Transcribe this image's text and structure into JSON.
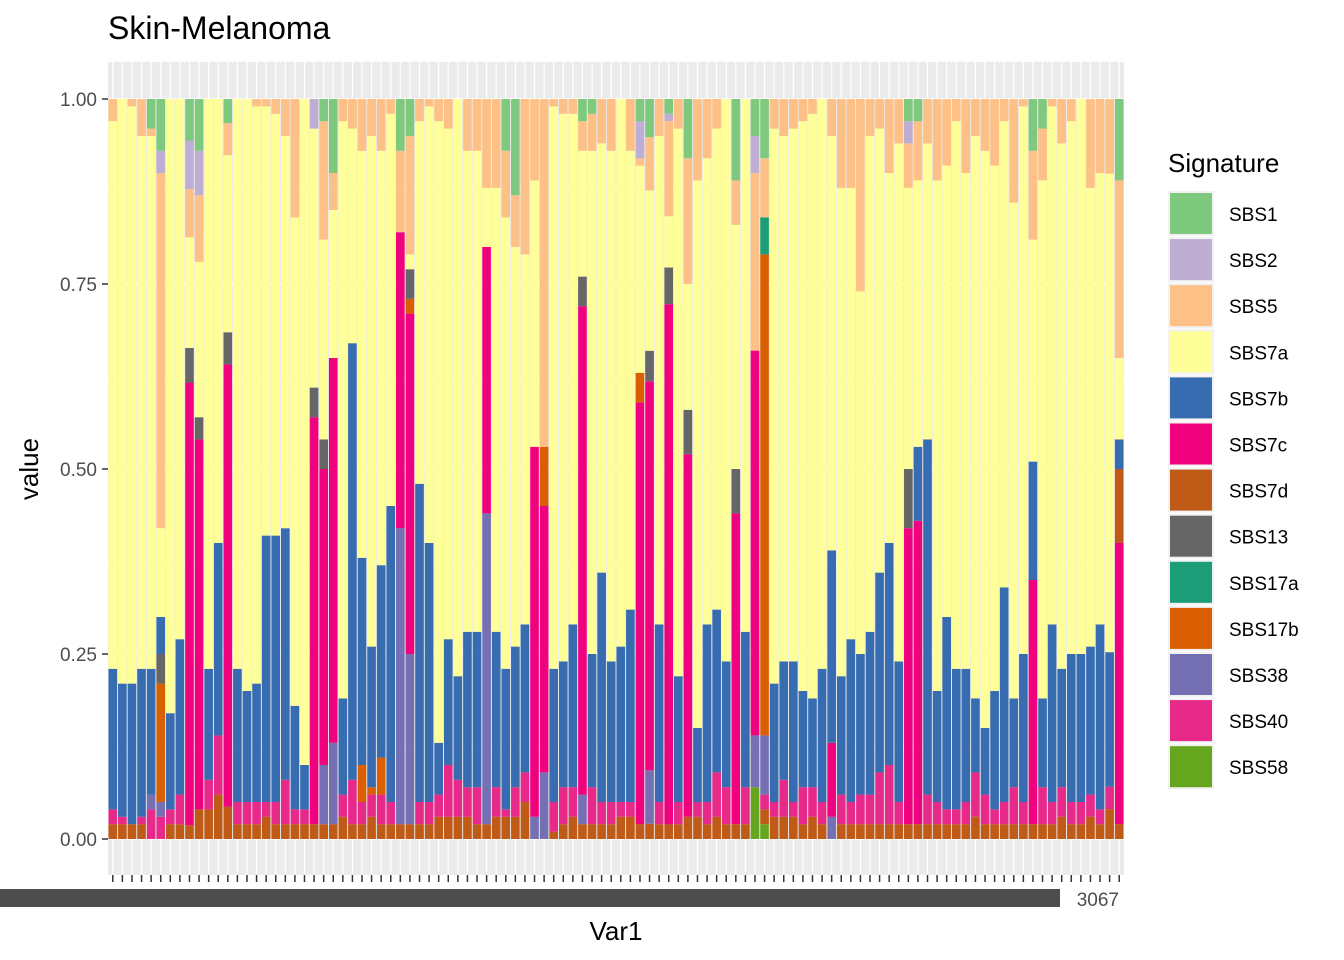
{
  "chart_data": {
    "type": "bar",
    "stacked": true,
    "title": "Skin-Melanoma",
    "xlabel": "Var1",
    "ylabel": "value",
    "ylim": [
      0,
      1
    ],
    "yticks": [
      "0.00",
      "0.25",
      "0.50",
      "0.75",
      "1.00"
    ],
    "grid": true,
    "legend": {
      "title": "Signature",
      "position": "right"
    },
    "signatures": [
      {
        "name": "SBS1",
        "color": "#7fc97f"
      },
      {
        "name": "SBS2",
        "color": "#beaed4"
      },
      {
        "name": "SBS5",
        "color": "#fdc086"
      },
      {
        "name": "SBS7a",
        "color": "#ffff99"
      },
      {
        "name": "SBS7b",
        "color": "#386cb0"
      },
      {
        "name": "SBS7c",
        "color": "#f0027f"
      },
      {
        "name": "SBS7d",
        "color": "#bf5b17"
      },
      {
        "name": "SBS13",
        "color": "#666666"
      },
      {
        "name": "SBS17a",
        "color": "#1b9e77"
      },
      {
        "name": "SBS17b",
        "color": "#d95f02"
      },
      {
        "name": "SBS38",
        "color": "#7570b3"
      },
      {
        "name": "SBS40",
        "color": "#e7298a"
      },
      {
        "name": "SBS58",
        "color": "#66a61e"
      }
    ],
    "bars": [
      {
        "SBS7d": 0.02,
        "SBS40": 0.02,
        "SBS7b": 0.19,
        "SBS7a": 0.74,
        "SBS5": 0.03
      },
      {
        "SBS7d": 0.02,
        "SBS40": 0.01,
        "SBS7b": 0.18,
        "SBS7a": 0.79
      },
      {
        "SBS7d": 0.02,
        "SBS7b": 0.19,
        "SBS7a": 0.78,
        "SBS5": 0.01
      },
      {
        "SBS7d": 0.02,
        "SBS40": 0.01,
        "SBS7b": 0.2,
        "SBS7a": 0.72,
        "SBS5": 0.05
      },
      {
        "SBS38": 0.02,
        "SBS40": 0.04,
        "SBS7b": 0.17,
        "SBS7a": 0.72,
        "SBS5": 0.01,
        "SBS1": 0.04
      },
      {
        "SBS38": 0.02,
        "SBS13": 0.04,
        "SBS17b": 0.16,
        "SBS40": 0.03,
        "SBS7b": 0.05,
        "SBS7a": 0.12,
        "SBS5": 0.48,
        "SBS2": 0.03,
        "SBS1": 0.07
      },
      {
        "SBS7d": 0.02,
        "SBS40": 0.02,
        "SBS7b": 0.13,
        "SBS7a": 0.83
      },
      {
        "SBS7d": 0.02,
        "SBS40": 0.04,
        "SBS7b": 0.21,
        "SBS7a": 0.73
      },
      {
        "SBS7d": 0.02,
        "SBS7c": 0.64,
        "SBS13": 0.05,
        "SBS7a": 0.16,
        "SBS5": 0.07,
        "SBS2": 0.07,
        "SBS1": 0.06
      },
      {
        "SBS7d": 0.04,
        "SBS7c": 0.5,
        "SBS13": 0.03,
        "SBS7a": 0.21,
        "SBS5": 0.09,
        "SBS2": 0.06,
        "SBS1": 0.07
      },
      {
        "SBS7d": 0.04,
        "SBS40": 0.04,
        "SBS7b": 0.15,
        "SBS7a": 0.77
      },
      {
        "SBS7d": 0.06,
        "SBS40": 0.08,
        "SBS7b": 0.26,
        "SBS7a": 0.6
      },
      {
        "SBS7d": 0.04,
        "SBS7c": 0.55,
        "SBS13": 0.04,
        "SBS7a": 0.22,
        "SBS5": 0.04,
        "SBS1": 0.03
      },
      {
        "SBS7d": 0.02,
        "SBS40": 0.03,
        "SBS7b": 0.18,
        "SBS7a": 0.77
      },
      {
        "SBS7d": 0.02,
        "SBS40": 0.03,
        "SBS7b": 0.15,
        "SBS7a": 0.8
      },
      {
        "SBS7d": 0.02,
        "SBS40": 0.03,
        "SBS7b": 0.16,
        "SBS7a": 0.78,
        "SBS5": 0.01
      },
      {
        "SBS7d": 0.03,
        "SBS40": 0.02,
        "SBS7b": 0.36,
        "SBS7a": 0.58,
        "SBS5": 0.01
      },
      {
        "SBS7d": 0.02,
        "SBS40": 0.03,
        "SBS7b": 0.36,
        "SBS7a": 0.57,
        "SBS5": 0.02
      },
      {
        "SBS7d": 0.02,
        "SBS40": 0.06,
        "SBS7b": 0.34,
        "SBS7a": 0.53,
        "SBS5": 0.05
      },
      {
        "SBS7d": 0.02,
        "SBS40": 0.02,
        "SBS7b": 0.14,
        "SBS7a": 0.66,
        "SBS5": 0.16
      },
      {
        "SBS7d": 0.02,
        "SBS40": 0.02,
        "SBS7b": 0.06,
        "SBS7a": 0.9
      },
      {
        "SBS7d": 0.02,
        "SBS7c": 0.55,
        "SBS13": 0.04,
        "SBS7a": 0.35,
        "SBS5": 0.0,
        "SBS2": 0.04
      },
      {
        "SBS7d": 0.02,
        "SBS7c": 0.4,
        "SBS38": 0.08,
        "SBS13": 0.04,
        "SBS7a": 0.27,
        "SBS5": 0.16,
        "SBS1": 0.03
      },
      {
        "SBS7d": 0.02,
        "SBS7c": 0.52,
        "SBS38": 0.11,
        "SBS7a": 0.2,
        "SBS5": 0.05,
        "SBS1": 0.1
      },
      {
        "SBS7d": 0.03,
        "SBS40": 0.03,
        "SBS7b": 0.13,
        "SBS7a": 0.78,
        "SBS5": 0.03
      },
      {
        "SBS7d": 0.02,
        "SBS40": 0.06,
        "SBS7b": 0.59,
        "SBS7a": 0.29,
        "SBS5": 0.04
      },
      {
        "SBS7d": 0.02,
        "SBS40": 0.03,
        "SBS7b": 0.28,
        "SBS17b": 0.05,
        "SBS7a": 0.55,
        "SBS5": 0.07
      },
      {
        "SBS7d": 0.03,
        "SBS40": 0.03,
        "SBS7b": 0.19,
        "SBS17b": 0.01,
        "SBS7a": 0.69,
        "SBS5": 0.05
      },
      {
        "SBS7d": 0.02,
        "SBS40": 0.04,
        "SBS7b": 0.26,
        "SBS17b": 0.05,
        "SBS7a": 0.56,
        "SBS5": 0.07
      },
      {
        "SBS7d": 0.02,
        "SBS40": 0.03,
        "SBS7b": 0.4,
        "SBS7a": 0.53,
        "SBS5": 0.02
      },
      {
        "SBS7d": 0.02,
        "SBS7c": 0.4,
        "SBS38": 0.4,
        "SBS7a": 0.0,
        "SBS5": 0.11,
        "SBS1": 0.07
      },
      {
        "SBS7d": 0.02,
        "SBS7c": 0.46,
        "SBS38": 0.23,
        "SBS13": 0.04,
        "SBS17b": 0.02,
        "SBS7a": 0.02,
        "SBS5": 0.16,
        "SBS1": 0.05
      },
      {
        "SBS7d": 0.02,
        "SBS40": 0.03,
        "SBS7b": 0.43,
        "SBS7a": 0.49,
        "SBS5": 0.03
      },
      {
        "SBS7d": 0.02,
        "SBS40": 0.03,
        "SBS7b": 0.35,
        "SBS7a": 0.59,
        "SBS5": 0.01
      },
      {
        "SBS7d": 0.03,
        "SBS40": 0.03,
        "SBS7b": 0.07,
        "SBS7a": 0.84,
        "SBS5": 0.03
      },
      {
        "SBS7d": 0.03,
        "SBS40": 0.07,
        "SBS7b": 0.17,
        "SBS7a": 0.69,
        "SBS5": 0.04
      },
      {
        "SBS7d": 0.03,
        "SBS40": 0.05,
        "SBS7b": 0.14,
        "SBS7a": 0.78
      },
      {
        "SBS7d": 0.03,
        "SBS40": 0.04,
        "SBS7b": 0.21,
        "SBS7a": 0.65,
        "SBS5": 0.07
      },
      {
        "SBS7d": 0.02,
        "SBS40": 0.05,
        "SBS7b": 0.21,
        "SBS7a": 0.65,
        "SBS5": 0.07
      },
      {
        "SBS7d": 0.02,
        "SBS7c": 0.36,
        "SBS38": 0.42,
        "SBS7a": 0.08,
        "SBS5": 0.12
      },
      {
        "SBS7d": 0.03,
        "SBS40": 0.04,
        "SBS7b": 0.21,
        "SBS7a": 0.6,
        "SBS5": 0.12
      },
      {
        "SBS7d": 0.03,
        "SBS40": 0.01,
        "SBS7b": 0.19,
        "SBS7a": 0.61,
        "SBS5": 0.09,
        "SBS1": 0.07
      },
      {
        "SBS7d": 0.03,
        "SBS40": 0.04,
        "SBS7b": 0.19,
        "SBS7a": 0.54,
        "SBS5": 0.07,
        "SBS1": 0.13
      },
      {
        "SBS7d": 0.05,
        "SBS40": 0.04,
        "SBS7b": 0.2,
        "SBS7a": 0.5,
        "SBS5": 0.21
      },
      {
        "SBS7c": 0.5,
        "SBS38": 0.03,
        "SBS7a": 0.36,
        "SBS5": 0.11
      },
      {
        "SBS7c": 0.36,
        "SBS38": 0.09,
        "SBS17b": 0.08,
        "SBS7a": 0.0,
        "SBS5": 0.47
      },
      {
        "SBS7d": 0.01,
        "SBS40": 0.04,
        "SBS7b": 0.18,
        "SBS7a": 0.76,
        "SBS5": 0.01
      },
      {
        "SBS7d": 0.02,
        "SBS40": 0.05,
        "SBS7b": 0.17,
        "SBS7a": 0.74,
        "SBS5": 0.02
      },
      {
        "SBS7d": 0.03,
        "SBS40": 0.04,
        "SBS7b": 0.22,
        "SBS7a": 0.69,
        "SBS5": 0.02
      },
      {
        "SBS7d": 0.02,
        "SBS7c": 0.66,
        "SBS13": 0.04,
        "SBS38": 0.04,
        "SBS7a": 0.17,
        "SBS5": 0.04,
        "SBS1": 0.03
      },
      {
        "SBS7d": 0.02,
        "SBS40": 0.05,
        "SBS7b": 0.18,
        "SBS7a": 0.68,
        "SBS5": 0.05,
        "SBS1": 0.02
      },
      {
        "SBS7d": 0.02,
        "SBS40": 0.03,
        "SBS7b": 0.31,
        "SBS7a": 0.58,
        "SBS5": 0.06
      },
      {
        "SBS7d": 0.02,
        "SBS40": 0.03,
        "SBS7b": 0.19,
        "SBS7a": 0.69,
        "SBS5": 0.07
      },
      {
        "SBS7d": 0.03,
        "SBS40": 0.02,
        "SBS7b": 0.21,
        "SBS7a": 0.74
      },
      {
        "SBS7d": 0.03,
        "SBS40": 0.02,
        "SBS7b": 0.26,
        "SBS7a": 0.62,
        "SBS5": 0.07
      },
      {
        "SBS7d": 0.02,
        "SBS7c": 0.57,
        "SBS17b": 0.04,
        "SBS7a": 0.28,
        "SBS5": 0.01,
        "SBS2": 0.05,
        "SBS1": 0.03
      },
      {
        "SBS7d": 0.02,
        "SBS7c": 0.51,
        "SBS38": 0.07,
        "SBS13": 0.04,
        "SBS7a": 0.21,
        "SBS5": 0.07,
        "SBS1": 0.05
      },
      {
        "SBS7d": 0.02,
        "SBS40": 0.03,
        "SBS7b": 0.24,
        "SBS7a": 0.66,
        "SBS5": 0.05
      },
      {
        "SBS7d": 0.02,
        "SBS7c": 0.71,
        "SBS13": 0.05,
        "SBS7a": 0.07,
        "SBS5": 0.13,
        "SBS2": 0.01,
        "SBS1": 0.02
      },
      {
        "SBS7d": 0.02,
        "SBS40": 0.03,
        "SBS7b": 0.17,
        "SBS7a": 0.74,
        "SBS5": 0.04
      },
      {
        "SBS7d": 0.03,
        "SBS7c": 0.49,
        "SBS13": 0.06,
        "SBS7a": 0.17,
        "SBS5": 0.17,
        "SBS1": 0.08
      },
      {
        "SBS7d": 0.03,
        "SBS40": 0.02,
        "SBS7b": 0.1,
        "SBS7a": 0.74,
        "SBS5": 0.11
      },
      {
        "SBS7d": 0.02,
        "SBS40": 0.03,
        "SBS7b": 0.24,
        "SBS7a": 0.63,
        "SBS5": 0.08
      },
      {
        "SBS7d": 0.03,
        "SBS40": 0.06,
        "SBS7b": 0.22,
        "SBS7a": 0.65,
        "SBS5": 0.04
      },
      {
        "SBS7d": 0.02,
        "SBS40": 0.05,
        "SBS7b": 0.17,
        "SBS7a": 0.76
      },
      {
        "SBS7d": 0.02,
        "SBS7c": 0.42,
        "SBS13": 0.06,
        "SBS7a": 0.33,
        "SBS5": 0.06,
        "SBS1": 0.11
      },
      {
        "SBS7d": 0.02,
        "SBS40": 0.05,
        "SBS7b": 0.21,
        "SBS7a": 0.72
      },
      {
        "SBS58": 0.07,
        "SBS7c": 0.52,
        "SBS38": 0.07,
        "SBS7a": 0.0,
        "SBS5": 0.24,
        "SBS2": 0.05,
        "SBS1": 0.05
      },
      {
        "SBS58": 0.02,
        "SBS7d": 0.02,
        "SBS40": 0.02,
        "SBS38": 0.08,
        "SBS17b": 0.65,
        "SBS17a": 0.05,
        "SBS7a": 0.0,
        "SBS5": 0.08,
        "SBS1": 0.08
      },
      {
        "SBS7d": 0.03,
        "SBS40": 0.02,
        "SBS7b": 0.16,
        "SBS7a": 0.75,
        "SBS5": 0.04
      },
      {
        "SBS7d": 0.03,
        "SBS40": 0.05,
        "SBS7b": 0.16,
        "SBS7a": 0.71,
        "SBS5": 0.05
      },
      {
        "SBS7d": 0.03,
        "SBS40": 0.02,
        "SBS7b": 0.19,
        "SBS7a": 0.72,
        "SBS5": 0.04
      },
      {
        "SBS7d": 0.02,
        "SBS40": 0.05,
        "SBS7b": 0.13,
        "SBS7a": 0.77,
        "SBS5": 0.03
      },
      {
        "SBS7d": 0.03,
        "SBS40": 0.04,
        "SBS7b": 0.12,
        "SBS7a": 0.79,
        "SBS5": 0.02
      },
      {
        "SBS7d": 0.02,
        "SBS40": 0.03,
        "SBS7b": 0.18,
        "SBS7a": 0.77
      },
      {
        "SBS38": 0.03,
        "SBS7c": 0.1,
        "SBS7b": 0.26,
        "SBS7a": 0.56,
        "SBS5": 0.05
      },
      {
        "SBS7d": 0.02,
        "SBS40": 0.04,
        "SBS7b": 0.16,
        "SBS7a": 0.66,
        "SBS5": 0.12
      },
      {
        "SBS7d": 0.02,
        "SBS40": 0.03,
        "SBS7b": 0.22,
        "SBS7a": 0.61,
        "SBS5": 0.12
      },
      {
        "SBS7d": 0.02,
        "SBS40": 0.04,
        "SBS7b": 0.19,
        "SBS7a": 0.49,
        "SBS5": 0.26
      },
      {
        "SBS7d": 0.02,
        "SBS40": 0.04,
        "SBS7b": 0.22,
        "SBS7a": 0.67,
        "SBS5": 0.05
      },
      {
        "SBS7d": 0.02,
        "SBS40": 0.07,
        "SBS7b": 0.27,
        "SBS7a": 0.6,
        "SBS5": 0.04
      },
      {
        "SBS7d": 0.02,
        "SBS40": 0.08,
        "SBS7b": 0.3,
        "SBS7a": 0.5,
        "SBS5": 0.1
      },
      {
        "SBS7d": 0.02,
        "SBS40": 0.03,
        "SBS7b": 0.19,
        "SBS7a": 0.7,
        "SBS5": 0.06
      },
      {
        "SBS7d": 0.02,
        "SBS7c": 0.4,
        "SBS13": 0.08,
        "SBS7a": 0.38,
        "SBS5": 0.06,
        "SBS2": 0.03,
        "SBS1": 0.03
      },
      {
        "SBS7d": 0.02,
        "SBS7c": 0.41,
        "SBS7b": 0.1,
        "SBS7a": 0.36,
        "SBS5": 0.08,
        "SBS1": 0.03
      },
      {
        "SBS7d": 0.02,
        "SBS40": 0.04,
        "SBS7b": 0.48,
        "SBS13": 0.0,
        "SBS7a": 0.4,
        "SBS5": 0.06
      },
      {
        "SBS7d": 0.02,
        "SBS40": 0.03,
        "SBS7b": 0.15,
        "SBS7a": 0.69,
        "SBS5": 0.11
      },
      {
        "SBS7d": 0.02,
        "SBS40": 0.02,
        "SBS7b": 0.26,
        "SBS7a": 0.61,
        "SBS5": 0.09
      },
      {
        "SBS7d": 0.02,
        "SBS40": 0.02,
        "SBS7b": 0.19,
        "SBS7a": 0.74,
        "SBS5": 0.03
      },
      {
        "SBS7d": 0.02,
        "SBS40": 0.03,
        "SBS7b": 0.18,
        "SBS7a": 0.67,
        "SBS5": 0.1
      },
      {
        "SBS7d": 0.03,
        "SBS40": 0.06,
        "SBS7b": 0.1,
        "SBS7a": 0.76,
        "SBS5": 0.05
      },
      {
        "SBS7d": 0.02,
        "SBS40": 0.04,
        "SBS7b": 0.09,
        "SBS7a": 0.78,
        "SBS5": 0.07
      },
      {
        "SBS7d": 0.02,
        "SBS40": 0.02,
        "SBS7b": 0.16,
        "SBS7a": 0.71,
        "SBS5": 0.09
      },
      {
        "SBS7d": 0.02,
        "SBS40": 0.03,
        "SBS7b": 0.29,
        "SBS7a": 0.63,
        "SBS5": 0.03
      },
      {
        "SBS7d": 0.02,
        "SBS40": 0.05,
        "SBS7b": 0.12,
        "SBS7a": 0.67,
        "SBS5": 0.14
      },
      {
        "SBS7d": 0.02,
        "SBS40": 0.03,
        "SBS7b": 0.2,
        "SBS7a": 0.74,
        "SBS5": 0.01
      },
      {
        "SBS7d": 0.02,
        "SBS7c": 0.33,
        "SBS7b": 0.16,
        "SBS7a": 0.3,
        "SBS5": 0.12,
        "SBS1": 0.07
      },
      {
        "SBS7d": 0.02,
        "SBS40": 0.05,
        "SBS7b": 0.12,
        "SBS7a": 0.7,
        "SBS5": 0.07,
        "SBS1": 0.04
      },
      {
        "SBS7d": 0.02,
        "SBS40": 0.03,
        "SBS7b": 0.24,
        "SBS7a": 0.7,
        "SBS5": 0.01
      },
      {
        "SBS7d": 0.03,
        "SBS40": 0.04,
        "SBS7b": 0.16,
        "SBS7a": 0.71,
        "SBS5": 0.06
      },
      {
        "SBS7d": 0.02,
        "SBS40": 0.03,
        "SBS7b": 0.2,
        "SBS7a": 0.72,
        "SBS5": 0.03
      },
      {
        "SBS7d": 0.02,
        "SBS40": 0.03,
        "SBS7b": 0.2,
        "SBS7a": 0.75
      },
      {
        "SBS7d": 0.03,
        "SBS40": 0.03,
        "SBS7b": 0.2,
        "SBS7a": 0.62,
        "SBS5": 0.12
      },
      {
        "SBS7d": 0.02,
        "SBS40": 0.02,
        "SBS7b": 0.25,
        "SBS7a": 0.61,
        "SBS5": 0.1
      },
      {
        "SBS7d": 0.04,
        "SBS40": 0.03,
        "SBS7b": 0.18,
        "SBS7a": 0.64,
        "SBS5": 0.1
      },
      {
        "SBS7d": 0.02,
        "SBS7c": 0.38,
        "SBS7d2": 0.1,
        "SBS7b": 0.04,
        "SBS7a": 0.11,
        "SBS5": 0.24,
        "SBS1": 0.11
      }
    ],
    "x_tick_labels_note": "",
    "x_tick_labels": [
      "",
      "",
      "",
      "",
      "",
      "",
      "",
      "",
      "",
      "",
      "",
      "",
      "",
      "",
      "",
      "",
      "",
      "",
      "",
      "",
      "",
      "",
      "",
      "",
      "",
      "",
      "",
      "",
      "",
      "",
      "",
      "",
      "",
      "",
      "",
      "",
      "",
      "",
      "",
      "",
      "",
      "",
      "",
      "",
      "",
      "",
      "",
      "",
      "",
      "",
      "",
      "",
      "",
      "",
      "",
      "",
      "",
      "",
      "",
      "",
      "",
      "",
      "",
      "",
      "",
      "",
      "",
      "",
      "",
      "",
      "",
      "",
      "",
      "",
      "",
      "",
      "",
      "",
      "",
      "",
      "",
      "",
      "",
      "",
      "",
      "",
      "",
      "",
      "",
      "",
      "",
      "",
      "",
      "",
      "",
      "",
      "",
      "",
      "",
      "",
      "",
      "",
      "",
      "",
      "",
      "",
      "",
      "",
      "",
      "",
      "",
      "",
      "",
      "",
      "",
      ""
    ],
    "x_tick_label_tail": "3067"
  }
}
